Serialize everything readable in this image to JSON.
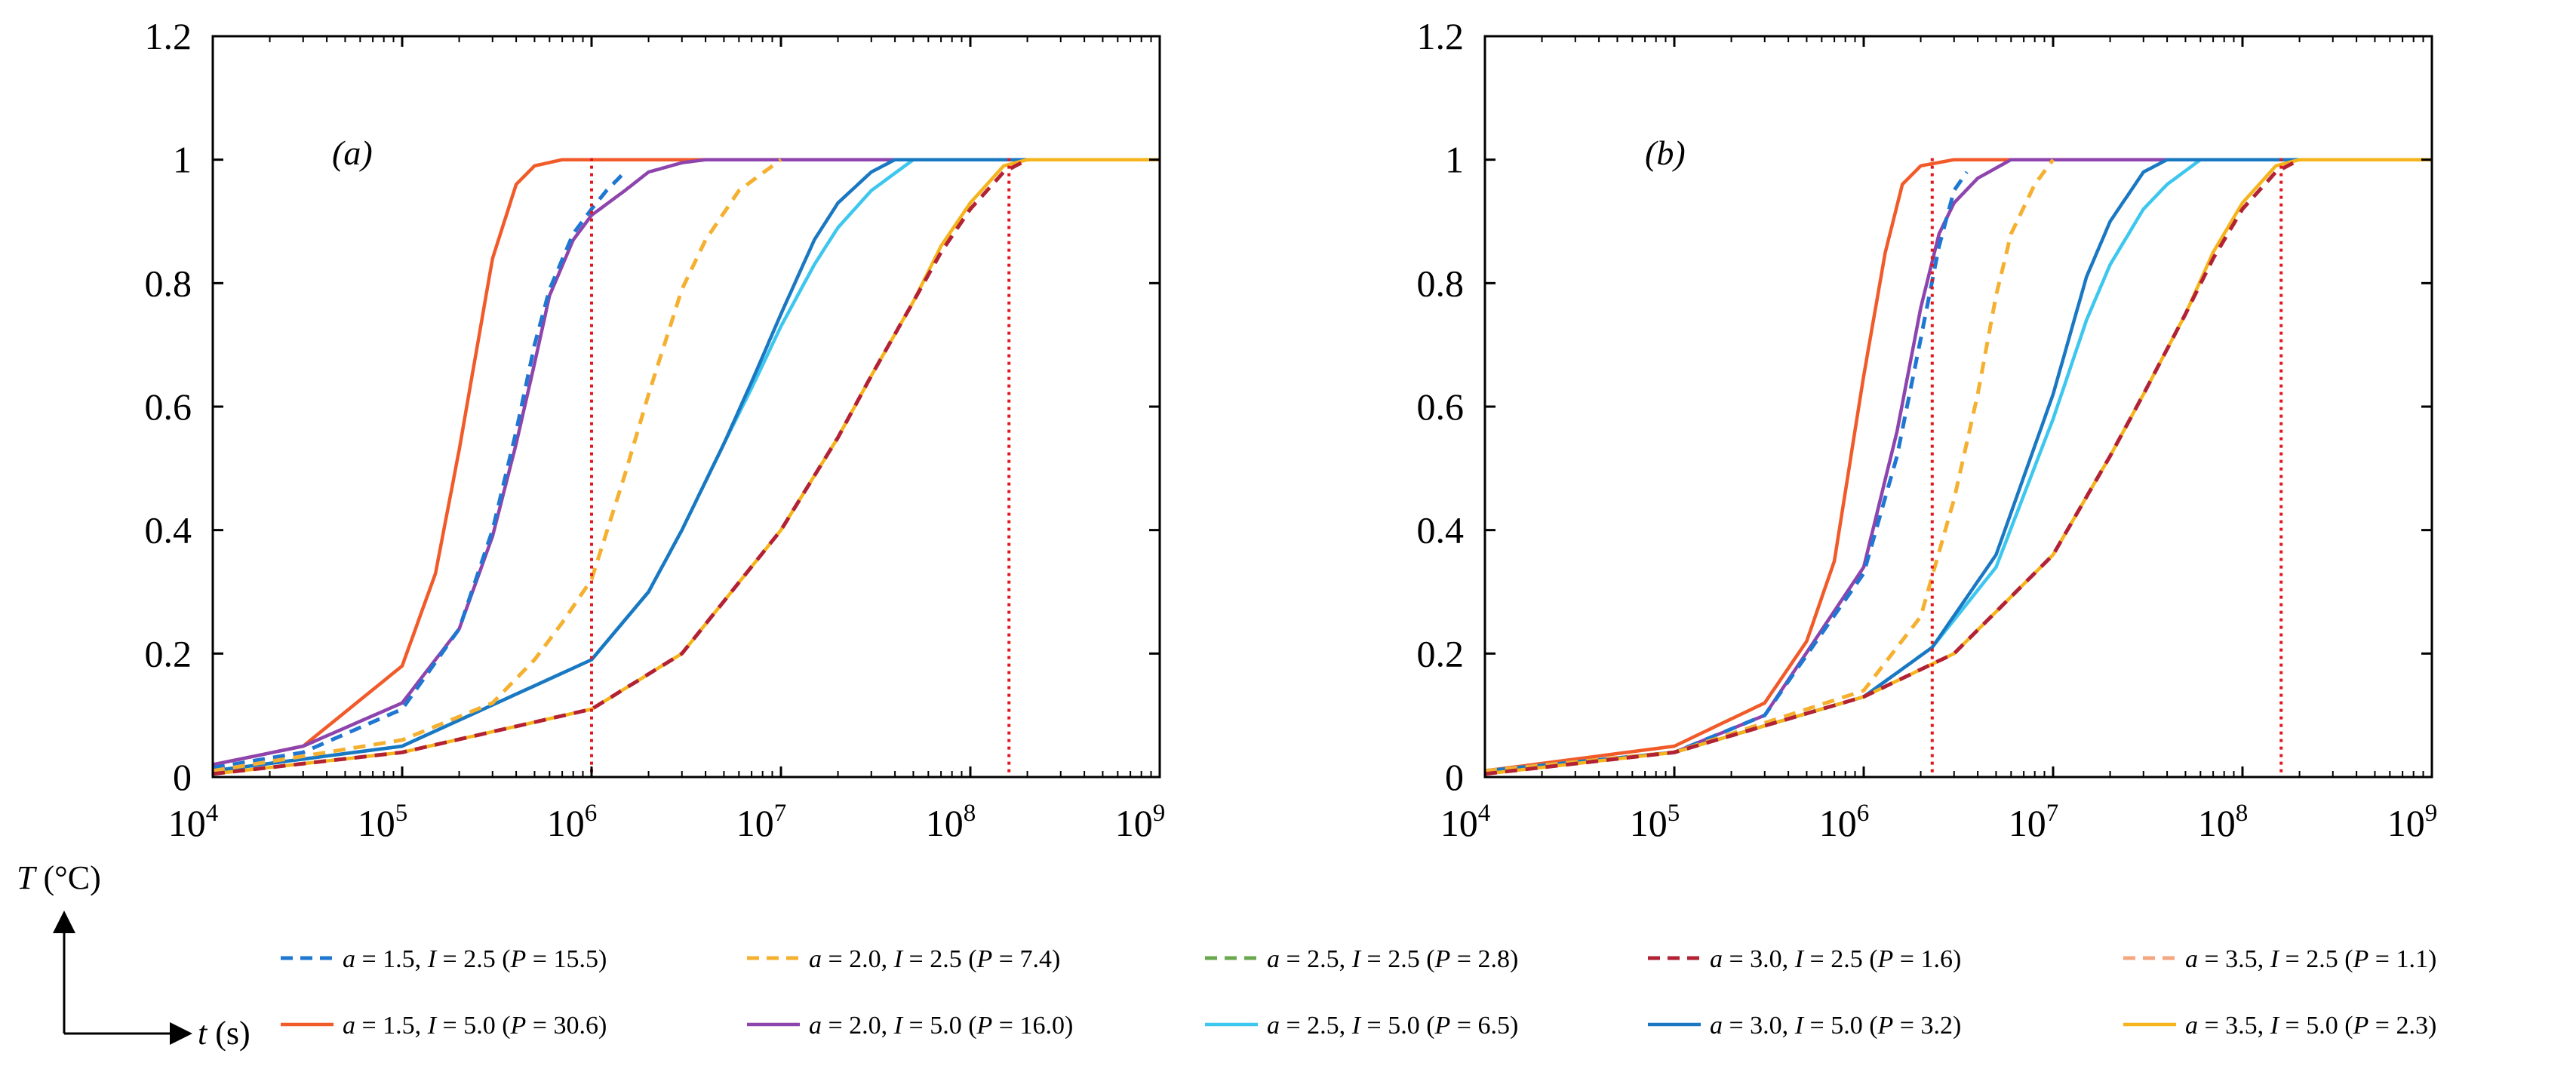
{
  "chart_data": {
    "type": "line",
    "x_scale": "log",
    "xlim": [
      10000,
      1000000000
    ],
    "ylim": [
      0,
      1.2
    ],
    "x_ticks": [
      {
        "value": 10000,
        "base": "10",
        "exp": "4"
      },
      {
        "value": 100000,
        "base": "10",
        "exp": "5"
      },
      {
        "value": 1000000,
        "base": "10",
        "exp": "6"
      },
      {
        "value": 10000000,
        "base": "10",
        "exp": "7"
      },
      {
        "value": 100000000,
        "base": "10",
        "exp": "8"
      },
      {
        "value": 1000000000,
        "base": "10",
        "exp": "9"
      }
    ],
    "y_ticks": [
      {
        "value": 0,
        "label": "0"
      },
      {
        "value": 0.2,
        "label": "0.2"
      },
      {
        "value": 0.4,
        "label": "0.4"
      },
      {
        "value": 0.6,
        "label": "0.6"
      },
      {
        "value": 0.8,
        "label": "0.8"
      },
      {
        "value": 1.0,
        "label": "1"
      },
      {
        "value": 1.2,
        "label": "1.2"
      }
    ],
    "axis_labels": {
      "y": {
        "var": "T",
        "unit": " (°C)"
      },
      "x": {
        "var": "t",
        "unit": " (s)"
      }
    },
    "legend": [
      {
        "a": "1.5",
        "I": "2.5",
        "P": "15.5",
        "color": "#1f77d2",
        "dashed": true
      },
      {
        "a": "2.0",
        "I": "2.5",
        "P": "7.4",
        "color": "#f5b030",
        "dashed": true
      },
      {
        "a": "2.5",
        "I": "2.5",
        "P": "2.8",
        "color": "#6aa84f",
        "dashed": true
      },
      {
        "a": "3.0",
        "I": "2.5",
        "P": "1.6",
        "color": "#b22234",
        "dashed": true
      },
      {
        "a": "3.5",
        "I": "2.5",
        "P": "1.1",
        "color": "#f4a582",
        "dashed": true
      },
      {
        "a": "1.5",
        "I": "5.0",
        "P": "30.6",
        "color": "#f15a29",
        "dashed": false
      },
      {
        "a": "2.0",
        "I": "5.0",
        "P": "16.0",
        "color": "#8e44ad",
        "dashed": false
      },
      {
        "a": "2.5",
        "I": "5.0",
        "P": "6.5",
        "color": "#3ec7ee",
        "dashed": false
      },
      {
        "a": "3.0",
        "I": "5.0",
        "P": "3.2",
        "color": "#1a78c2",
        "dashed": false
      },
      {
        "a": "3.5",
        "I": "5.0",
        "P": "2.3",
        "color": "#f6b41c",
        "dashed": false
      }
    ],
    "panels": [
      {
        "label": "(a)",
        "vlines": [
          1000000,
          160000000
        ],
        "series": [
          {
            "key": "s1",
            "color": "#f15a29",
            "dashed": false,
            "x": [
              10000,
              30000,
              100000,
              150000,
              200000,
              300000,
              400000,
              500000,
              700000,
              1000000,
              2000000,
              1000000000
            ],
            "y": [
              0.02,
              0.05,
              0.18,
              0.33,
              0.53,
              0.84,
              0.96,
              0.99,
              1.0,
              1.0,
              1.0,
              1.0
            ]
          },
          {
            "key": "s2",
            "color": "#1f77d2",
            "dashed": true,
            "x": [
              10000,
              30000,
              100000,
              200000,
              300000,
              400000,
              500000,
              600000,
              800000,
              1000000,
              1200000,
              1500000
            ],
            "y": [
              0.015,
              0.04,
              0.11,
              0.24,
              0.4,
              0.56,
              0.7,
              0.79,
              0.88,
              0.92,
              0.95,
              0.98
            ]
          },
          {
            "key": "s3",
            "color": "#8e44ad",
            "dashed": false,
            "x": [
              10000,
              30000,
              100000,
              200000,
              300000,
              400000,
              500000,
              600000,
              800000,
              1000000,
              1500000,
              2000000,
              3000000,
              4000000,
              1000000000
            ],
            "y": [
              0.02,
              0.05,
              0.12,
              0.24,
              0.39,
              0.54,
              0.67,
              0.78,
              0.87,
              0.91,
              0.95,
              0.98,
              0.995,
              1.0,
              1.0
            ]
          },
          {
            "key": "s4",
            "color": "#f5b030",
            "dashed": true,
            "x": [
              10000,
              100000,
              300000,
              500000,
              700000,
              1000000,
              1500000,
              2000000,
              3000000,
              4000000,
              6000000,
              10000000
            ],
            "y": [
              0.01,
              0.06,
              0.12,
              0.19,
              0.25,
              0.32,
              0.49,
              0.62,
              0.79,
              0.87,
              0.95,
              1.0
            ]
          },
          {
            "key": "s5",
            "color": "#3ec7ee",
            "dashed": false,
            "x": [
              10000,
              100000,
              1000000,
              2000000,
              3000000,
              5000000,
              7000000,
              10000000,
              15000000,
              20000000,
              30000000,
              50000000,
              1000000000
            ],
            "y": [
              0.01,
              0.05,
              0.19,
              0.3,
              0.4,
              0.54,
              0.63,
              0.73,
              0.83,
              0.89,
              0.95,
              1.0,
              1.0
            ]
          },
          {
            "key": "s6",
            "color": "#1a78c2",
            "dashed": false,
            "x": [
              10000,
              100000,
              1000000,
              2000000,
              3000000,
              5000000,
              7000000,
              10000000,
              15000000,
              20000000,
              30000000,
              40000000,
              1000000000
            ],
            "y": [
              0.01,
              0.05,
              0.19,
              0.3,
              0.4,
              0.54,
              0.64,
              0.75,
              0.87,
              0.93,
              0.98,
              1.0,
              1.0
            ]
          },
          {
            "key": "s7",
            "color": "#b22234",
            "dashed": true,
            "x": [
              10000,
              100000,
              1000000,
              3000000,
              10000000,
              20000000,
              30000000,
              50000000,
              70000000,
              100000000,
              150000000,
              200000000
            ],
            "y": [
              0.005,
              0.04,
              0.11,
              0.2,
              0.4,
              0.55,
              0.65,
              0.77,
              0.85,
              0.92,
              0.98,
              1.0
            ]
          },
          {
            "key": "s8",
            "color": "#f6b41c",
            "dashed": false,
            "x": [
              10000,
              100000,
              1000000,
              3000000,
              10000000,
              20000000,
              30000000,
              50000000,
              70000000,
              100000000,
              150000000,
              200000000,
              1000000000
            ],
            "y": [
              0.005,
              0.04,
              0.11,
              0.2,
              0.4,
              0.55,
              0.65,
              0.77,
              0.86,
              0.93,
              0.99,
              1.0,
              1.0
            ]
          }
        ]
      },
      {
        "label": "(b)",
        "vlines": [
          2300000,
          160000000
        ],
        "series": [
          {
            "key": "s1",
            "color": "#f15a29",
            "dashed": false,
            "x": [
              10000,
              100000,
              300000,
              500000,
              700000,
              1000000,
              1300000,
              1600000,
              2000000,
              3000000,
              1000000000
            ],
            "y": [
              0.01,
              0.05,
              0.12,
              0.22,
              0.35,
              0.65,
              0.85,
              0.96,
              0.99,
              1.0,
              1.0
            ]
          },
          {
            "key": "s2",
            "color": "#1f77d2",
            "dashed": true,
            "x": [
              10000,
              100000,
              300000,
              1000000,
              1500000,
              2000000,
              2500000,
              3000000,
              3500000
            ],
            "y": [
              0.01,
              0.04,
              0.1,
              0.33,
              0.52,
              0.71,
              0.86,
              0.95,
              0.98
            ]
          },
          {
            "key": "s3",
            "color": "#8e44ad",
            "dashed": false,
            "x": [
              10000,
              100000,
              300000,
              1000000,
              1500000,
              2000000,
              2500000,
              3000000,
              4000000,
              6000000,
              1000000000
            ],
            "y": [
              0.01,
              0.04,
              0.1,
              0.34,
              0.56,
              0.76,
              0.88,
              0.93,
              0.97,
              1.0,
              1.0
            ]
          },
          {
            "key": "s4",
            "color": "#f5b030",
            "dashed": true,
            "x": [
              10000,
              100000,
              1000000,
              2000000,
              3000000,
              4000000,
              5000000,
              6000000,
              8000000,
              10000000
            ],
            "y": [
              0.01,
              0.04,
              0.14,
              0.26,
              0.45,
              0.62,
              0.78,
              0.88,
              0.96,
              1.0
            ]
          },
          {
            "key": "s5",
            "color": "#3ec7ee",
            "dashed": false,
            "x": [
              10000,
              100000,
              1000000,
              2300000,
              5000000,
              10000000,
              15000000,
              20000000,
              30000000,
              40000000,
              60000000,
              1000000000
            ],
            "y": [
              0.01,
              0.04,
              0.13,
              0.21,
              0.34,
              0.58,
              0.74,
              0.83,
              0.92,
              0.96,
              1.0,
              1.0
            ]
          },
          {
            "key": "s6",
            "color": "#1a78c2",
            "dashed": false,
            "x": [
              10000,
              100000,
              1000000,
              2300000,
              5000000,
              10000000,
              15000000,
              20000000,
              30000000,
              40000000,
              1000000000
            ],
            "y": [
              0.01,
              0.04,
              0.13,
              0.21,
              0.36,
              0.62,
              0.81,
              0.9,
              0.98,
              1.0,
              1.0
            ]
          },
          {
            "key": "s7",
            "color": "#b22234",
            "dashed": true,
            "x": [
              10000,
              100000,
              1000000,
              3000000,
              10000000,
              20000000,
              30000000,
              50000000,
              70000000,
              100000000,
              150000000,
              200000000
            ],
            "y": [
              0.005,
              0.04,
              0.13,
              0.2,
              0.36,
              0.52,
              0.62,
              0.75,
              0.84,
              0.92,
              0.98,
              1.0
            ]
          },
          {
            "key": "s8",
            "color": "#f6b41c",
            "dashed": false,
            "x": [
              10000,
              100000,
              1000000,
              3000000,
              10000000,
              20000000,
              30000000,
              50000000,
              70000000,
              100000000,
              150000000,
              200000000,
              1000000000
            ],
            "y": [
              0.005,
              0.04,
              0.13,
              0.2,
              0.36,
              0.52,
              0.62,
              0.75,
              0.85,
              0.93,
              0.99,
              1.0,
              1.0
            ]
          }
        ]
      }
    ]
  }
}
